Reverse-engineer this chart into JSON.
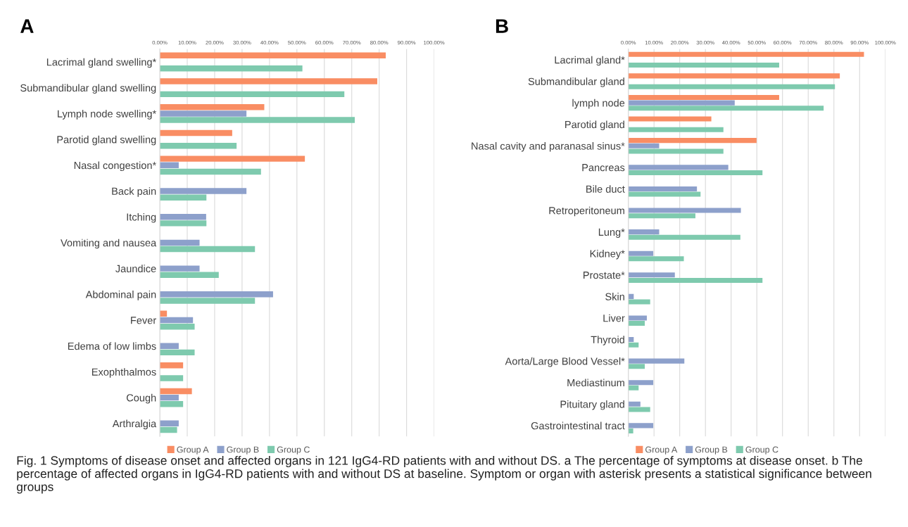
{
  "chart_data": [
    {
      "type": "bar",
      "orientation": "horizontal",
      "title": "A",
      "categories": [
        "Lacrimal gland swelling*",
        "Submandibular gland swelling",
        "Lymph node swelling*",
        "Parotid gland swelling",
        "Nasal congestion*",
        "Back pain",
        "Itching",
        "Vomiting and nausea",
        "Jaundice",
        "Abdominal pain",
        "Fever",
        "Edema of low limbs",
        "Exophthalmos",
        "Cough",
        "Arthralgia"
      ],
      "series": [
        {
          "name": "Group A",
          "color": "#f98d63",
          "values": [
            82.4,
            79.3,
            38.1,
            26.4,
            52.9,
            null,
            null,
            null,
            null,
            null,
            2.6,
            null,
            8.5,
            11.7,
            null
          ]
        },
        {
          "name": "Group B",
          "color": "#8da0cb",
          "values": [
            null,
            null,
            31.6,
            null,
            6.9,
            31.6,
            16.9,
            14.5,
            14.5,
            41.3,
            12.1,
            6.9,
            null,
            6.9,
            6.9
          ]
        },
        {
          "name": "Group C",
          "color": "#7ecaae",
          "values": [
            52.0,
            67.3,
            71.1,
            28.0,
            36.9,
            17.0,
            17.0,
            34.7,
            21.5,
            34.7,
            12.7,
            12.7,
            8.5,
            8.5,
            6.3
          ]
        }
      ],
      "xlim": [
        0,
        100
      ],
      "xticks": [
        {
          "value": 0,
          "label": "0.00%"
        },
        {
          "value": 10,
          "label": "10.00%"
        },
        {
          "value": 20,
          "label": "20.00%"
        },
        {
          "value": 30,
          "label": "30.00%"
        },
        {
          "value": 40,
          "label": "40.00%"
        },
        {
          "value": 50,
          "label": "50.00%"
        },
        {
          "value": 60,
          "label": "60.00%"
        },
        {
          "value": 70,
          "label": "70.00%"
        },
        {
          "value": 80,
          "label": "80.00%"
        },
        {
          "value": 90,
          "label": "90.00%"
        },
        {
          "value": 100,
          "label": "100.00%"
        }
      ],
      "grid": "x",
      "legend": "bottom",
      "annotations": [
        "Fig. 1 Symptoms of disease onset and affected organs in 121 IgG4-RD patients with and without DS. a The percentage of symptoms at disease onset. b The percentage of affected organs in IgG4-RD patients with and without DS at baseline. Symptom or organ with asterisk presents a statistical significance between groups"
      ]
    },
    {
      "type": "bar",
      "orientation": "horizontal",
      "title": "B",
      "categories": [
        "Lacrimal gland*",
        "Submandibular gland",
        "lymph node",
        "Parotid gland",
        "Nasal cavity and paranasal sinus*",
        "Pancreas",
        "Bile duct",
        "Retroperitoneum",
        "Lung*",
        "Kidney*",
        "Prostate*",
        "Skin",
        "Liver",
        "Thyroid",
        "Aorta/Large Blood Vessel*",
        "Mediastinum",
        "Pituitary gland",
        "Gastrointestinal tract"
      ],
      "series": [
        {
          "name": "Group A",
          "color": "#f98d63",
          "values": [
            91.7,
            82.3,
            58.7,
            32.3,
            49.9,
            null,
            null,
            null,
            null,
            null,
            null,
            null,
            null,
            null,
            null,
            null,
            null,
            null
          ]
        },
        {
          "name": "Group B",
          "color": "#8da0cb",
          "values": [
            null,
            null,
            41.4,
            null,
            12.0,
            38.9,
            26.7,
            43.8,
            12.0,
            9.7,
            18.1,
            2.1,
            7.2,
            2.1,
            21.8,
            9.7,
            4.7,
            9.7
          ]
        },
        {
          "name": "Group C",
          "color": "#7ecaae",
          "values": [
            58.7,
            80.4,
            76.0,
            37.0,
            37.0,
            52.2,
            28.1,
            26.1,
            43.6,
            21.6,
            52.2,
            8.5,
            6.4,
            4.0,
            6.4,
            4.0,
            8.5,
            1.9
          ]
        }
      ],
      "xlim": [
        0,
        100
      ],
      "xticks": [
        {
          "value": 0,
          "label": "0.00%"
        },
        {
          "value": 10,
          "label": "10.00%"
        },
        {
          "value": 20,
          "label": "20.00%"
        },
        {
          "value": 30,
          "label": "30.00%"
        },
        {
          "value": 40,
          "label": "40.00%"
        },
        {
          "value": 50,
          "label": "50.00%"
        },
        {
          "value": 60,
          "label": "60.00%"
        },
        {
          "value": 70,
          "label": "70.00%"
        },
        {
          "value": 80,
          "label": "80.00%"
        },
        {
          "value": 90,
          "label": "90.00%"
        },
        {
          "value": 100,
          "label": "100.00%"
        }
      ],
      "grid": "x",
      "legend": "bottom"
    }
  ]
}
